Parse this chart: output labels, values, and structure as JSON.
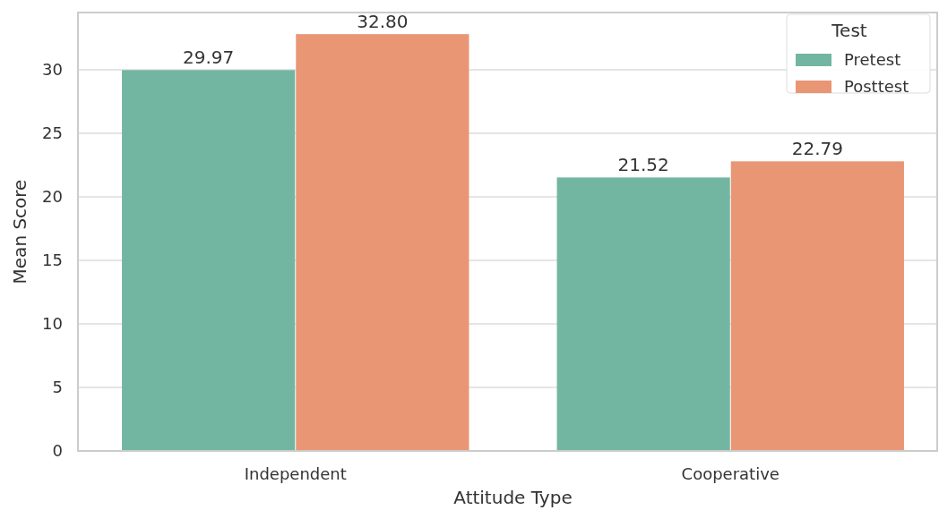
{
  "chart_data": {
    "type": "bar",
    "xlabel": "Attitude Type",
    "ylabel": "Mean Score",
    "legend_title": "Test",
    "categories": [
      "Independent",
      "Cooperative"
    ],
    "series": [
      {
        "name": "Pretest",
        "color": "#72b6a1",
        "values": [
          29.97,
          21.52
        ]
      },
      {
        "name": "Posttest",
        "color": "#e99675",
        "values": [
          32.8,
          22.79
        ]
      }
    ],
    "value_labels": [
      [
        "29.97",
        "21.52"
      ],
      [
        "32.80",
        "22.79"
      ]
    ],
    "ylim": [
      0,
      34.5
    ],
    "yticks": [
      0,
      5,
      10,
      15,
      20,
      25,
      30
    ],
    "grid": "y",
    "legend": "top right"
  }
}
